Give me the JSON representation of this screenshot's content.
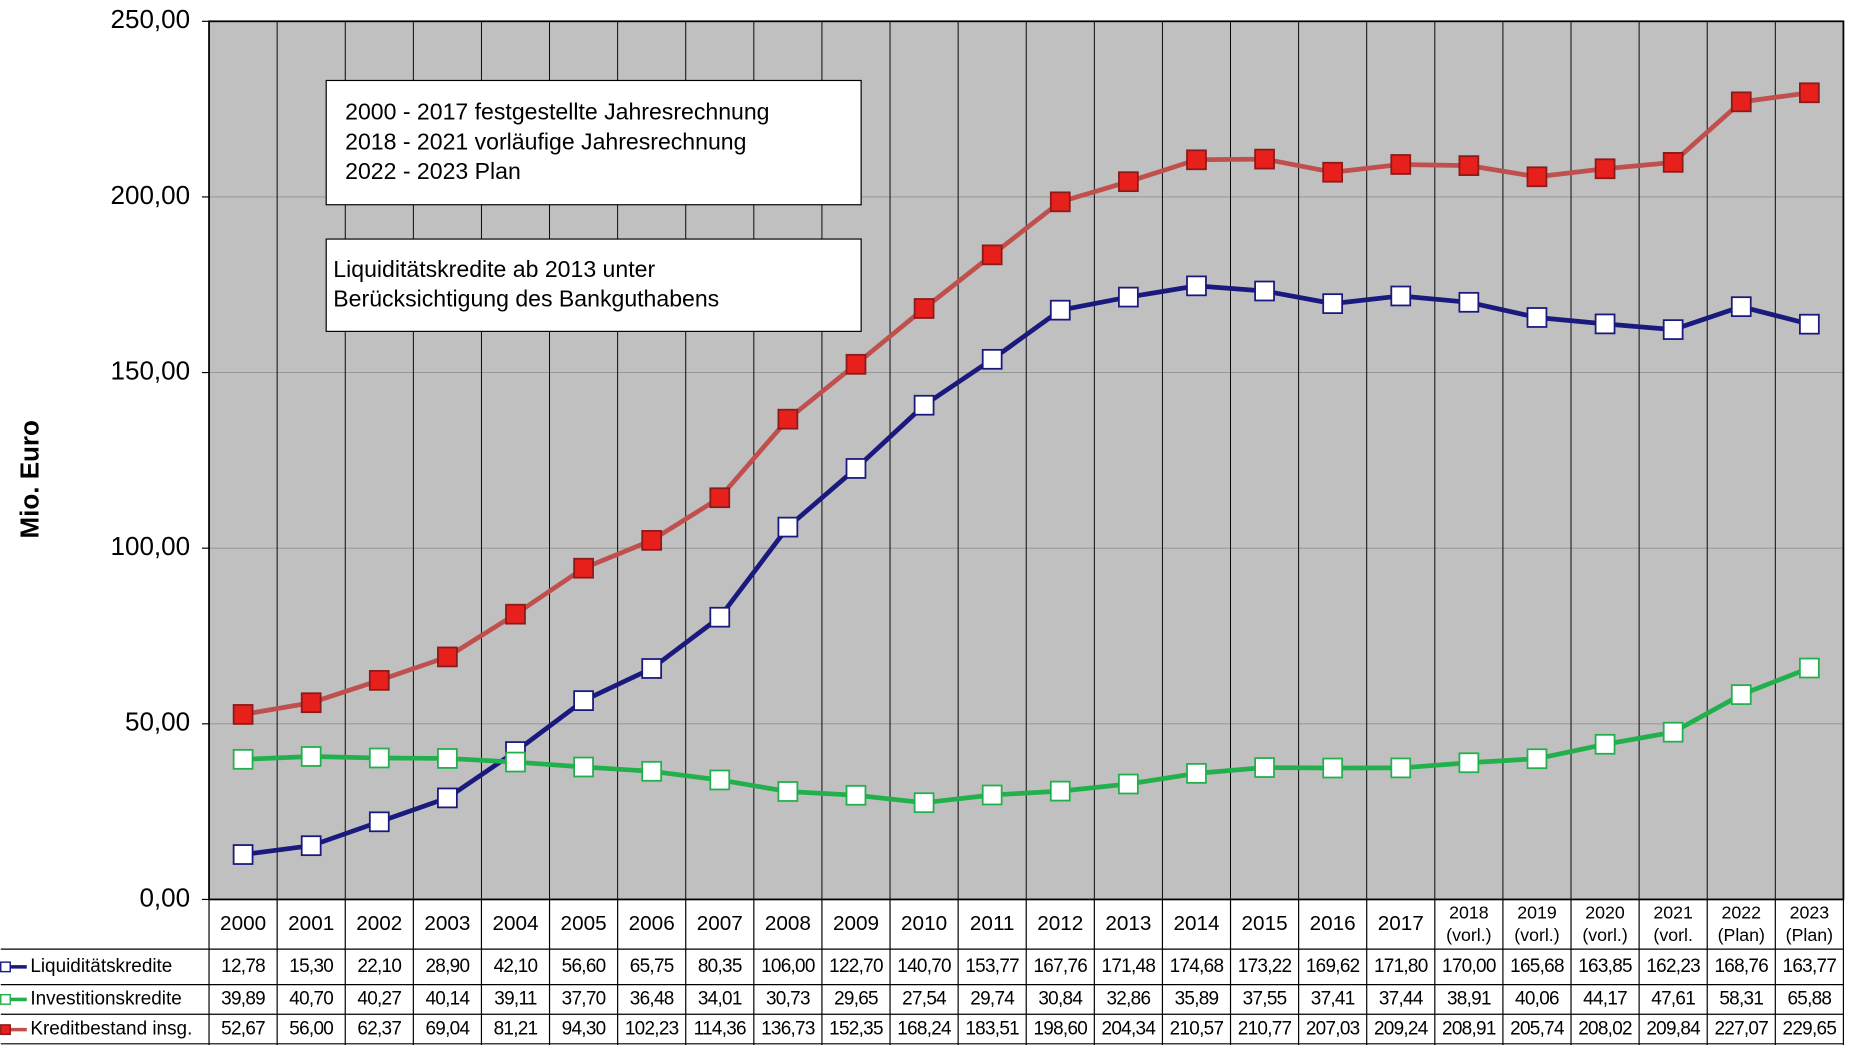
{
  "chart_data": {
    "type": "line",
    "y_axis_label": "Mio. Euro",
    "categories": [
      "2000",
      "2001",
      "2002",
      "2003",
      "2004",
      "2005",
      "2006",
      "2007",
      "2008",
      "2009",
      "2010",
      "2011",
      "2012",
      "2013",
      "2014",
      "2015",
      "2016",
      "2017",
      "2018 (vorl.)",
      "2019 (vorl.)",
      "2020 (vorl.)",
      "2021 (vorl.",
      "2022 (Plan)",
      "2023 (Plan)"
    ],
    "ylim": [
      0,
      250
    ],
    "yticks": [
      {
        "value": 0,
        "label": "0,00"
      },
      {
        "value": 50,
        "label": "50,00"
      },
      {
        "value": 100,
        "label": "100,00"
      },
      {
        "value": 150,
        "label": "150,00"
      },
      {
        "value": 200,
        "label": "200,00"
      },
      {
        "value": 250,
        "label": "250,00"
      }
    ],
    "grid": true,
    "annotations": [
      [
        "2000 - 2017 festgestellte Jahresrechnung",
        "2018 - 2021  vorläufige Jahresrechnung",
        "2022 - 2023 Plan"
      ],
      [
        "Liquiditätskredite ab 2013 unter",
        "Berücksichtigung des Bankguthabens"
      ]
    ],
    "series": [
      {
        "name": "Liquiditätskredite",
        "color": "#1a1a7e",
        "marker_fill": "#ffffff",
        "values": [
          12.78,
          15.3,
          22.1,
          28.9,
          42.1,
          56.6,
          65.75,
          80.35,
          106.0,
          122.7,
          140.7,
          153.77,
          167.76,
          171.48,
          174.68,
          173.22,
          169.62,
          171.8,
          170.0,
          165.68,
          163.85,
          162.23,
          168.76,
          163.77
        ],
        "value_labels": [
          "12,78",
          "15,30",
          "22,10",
          "28,90",
          "42,10",
          "56,60",
          "65,75",
          "80,35",
          "106,00",
          "122,70",
          "140,70",
          "153,77",
          "167,76",
          "171,48",
          "174,68",
          "173,22",
          "169,62",
          "171,80",
          "170,00",
          "165,68",
          "163,85",
          "162,23",
          "168,76",
          "163,77"
        ]
      },
      {
        "name": "Investitionskredite",
        "color": "#22b04c",
        "marker_fill": "#ffffff",
        "values": [
          39.89,
          40.7,
          40.27,
          40.14,
          39.11,
          37.7,
          36.48,
          34.01,
          30.73,
          29.65,
          27.54,
          29.74,
          30.84,
          32.86,
          35.89,
          37.55,
          37.41,
          37.44,
          38.91,
          40.06,
          44.17,
          47.61,
          58.31,
          65.88
        ],
        "value_labels": [
          "39,89",
          "40,70",
          "40,27",
          "40,14",
          "39,11",
          "37,70",
          "36,48",
          "34,01",
          "30,73",
          "29,65",
          "27,54",
          "29,74",
          "30,84",
          "32,86",
          "35,89",
          "37,55",
          "37,41",
          "37,44",
          "38,91",
          "40,06",
          "44,17",
          "47,61",
          "58,31",
          "65,88"
        ]
      },
      {
        "name": "Kreditbestand insg.",
        "color": "#c0504d",
        "marker_fill": "#e8201c",
        "values": [
          52.67,
          56.0,
          62.37,
          69.04,
          81.21,
          94.3,
          102.23,
          114.36,
          136.73,
          152.35,
          168.24,
          183.51,
          198.6,
          204.34,
          210.57,
          210.77,
          207.03,
          209.24,
          208.91,
          205.74,
          208.02,
          209.84,
          227.07,
          229.65
        ],
        "value_labels": [
          "52,67",
          "56,00",
          "62,37",
          "69,04",
          "81,21",
          "94,30",
          "102,23",
          "114,36",
          "136,73",
          "152,35",
          "168,24",
          "183,51",
          "198,60",
          "204,34",
          "210,57",
          "210,77",
          "207,03",
          "209,24",
          "208,91",
          "205,74",
          "208,02",
          "209,84",
          "227,07",
          "229,65"
        ]
      }
    ]
  }
}
